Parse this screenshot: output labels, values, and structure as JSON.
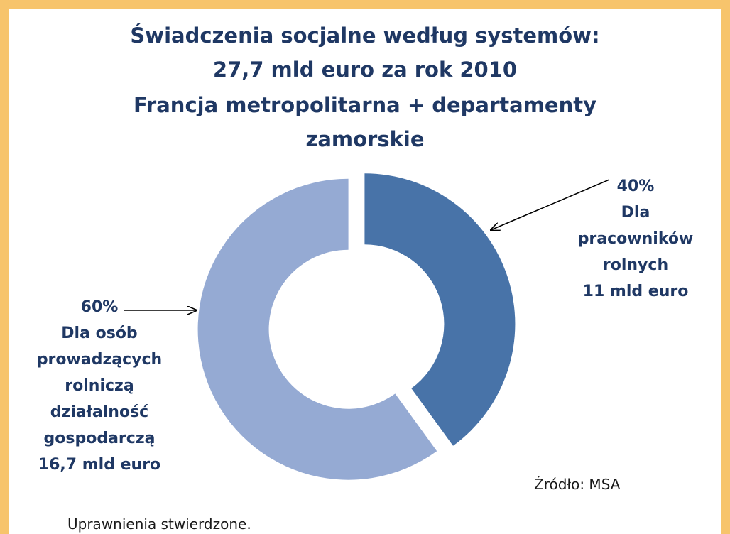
{
  "chart_data": {
    "type": "donut",
    "title": [
      "Świadczenia socjalne według systemów:",
      "27,7 mld euro za rok 2010",
      "Francja metropolitarna + departamenty",
      "zamorskie"
    ],
    "categories": [
      "Dla pracowników rolnych",
      "Dla osób prowadzących rolniczą działalność gospodarczą"
    ],
    "values": [
      40,
      60
    ],
    "value_labels": [
      "40%",
      "60%"
    ],
    "amount_labels": [
      "11 mld euro",
      "16,7 mld euro"
    ],
    "colors": [
      "#4873a8",
      "#95aad3"
    ],
    "source": "Źródło: MSA",
    "footnote": "Uprawnienia stwierdzone."
  }
}
